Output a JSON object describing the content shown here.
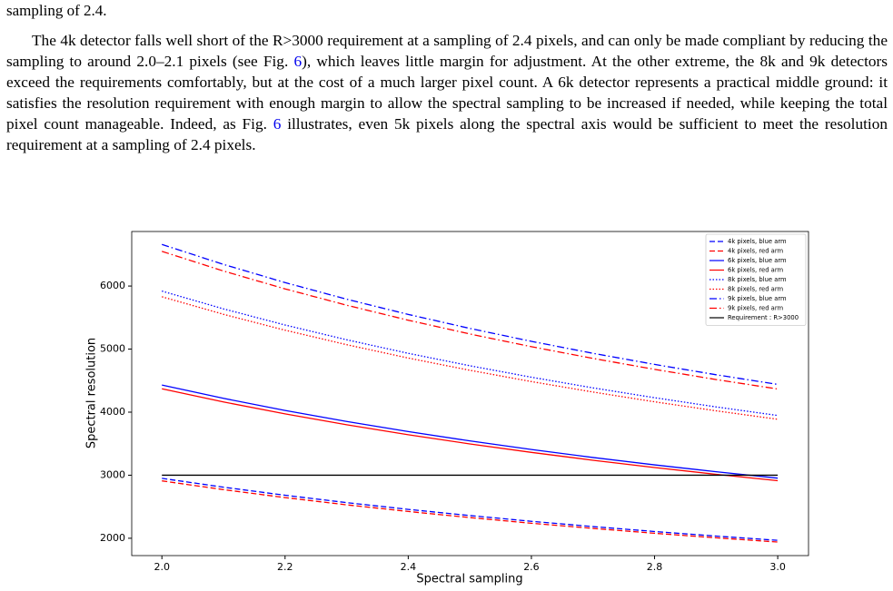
{
  "document": {
    "top_line": "sampling of 2.4.",
    "paragraph": [
      "The 4k detector falls well short of the R>3000 requirement at a sampling of 2.4 pixels, and can only be made compliant by reducing the sampling to around 2.0–2.1 pixels (see Fig. ",
      "6",
      "), which leaves little margin for adjustment. At the other extreme, the 8k and 9k detectors exceed the requirements comfortably, but at the cost of a much larger pixel count. A 6k detector represents a practical middle ground: it satisfies the resolution requirement with enough margin to allow the spectral sampling to be increased if needed, while keeping the total pixel count manageable. Indeed, as Fig. ",
      "6",
      " illustrates, even 5k pixels along the spectral axis would be sufficient to meet the resolution requirement at a sampling of 2.4 pixels."
    ]
  },
  "chart_data": {
    "type": "line",
    "x_label": "Spectral sampling",
    "y_label": "Spectral resolution",
    "x": [
      2.0,
      2.1,
      2.2,
      2.3,
      2.4,
      2.5,
      2.6,
      2.7,
      2.8,
      2.9,
      3.0
    ],
    "xlim": [
      1.951,
      3.05
    ],
    "ylim": [
      1725,
      6865
    ],
    "xticks": [
      {
        "value": 2,
        "label": "2.0"
      },
      2.2,
      2.4,
      2.6,
      2.8,
      {
        "value": 3,
        "label": "3.0"
      }
    ],
    "yticks": [
      2000,
      3000,
      4000,
      5000,
      6000
    ],
    "grid": false,
    "legend": "upper right",
    "series": [
      {
        "name": "4k pixels, blue arm",
        "color": "#0000ff",
        "linestyle": "dashed",
        "values": [
          2950,
          2810,
          2682,
          2565,
          2458,
          2360,
          2269,
          2185,
          2107,
          2034,
          1967
        ]
      },
      {
        "name": "4k pixels, red arm",
        "color": "#ff0000",
        "linestyle": "dashed",
        "values": [
          2910,
          2771,
          2645,
          2530,
          2425,
          2328,
          2238,
          2156,
          2079,
          2007,
          1940
        ]
      },
      {
        "name": "6k pixels, blue arm",
        "color": "#0000ff",
        "linestyle": "solid",
        "values": [
          4430,
          4219,
          4027,
          3852,
          3692,
          3544,
          3408,
          3281,
          3164,
          3055,
          2953
        ]
      },
      {
        "name": "6k pixels, red arm",
        "color": "#ff0000",
        "linestyle": "solid",
        "values": [
          4370,
          4162,
          3973,
          3800,
          3642,
          3496,
          3362,
          3237,
          3121,
          3014,
          2913
        ]
      },
      {
        "name": "8k pixels, blue arm",
        "color": "#0000ff",
        "linestyle": "dotted",
        "values": [
          5920,
          5638,
          5382,
          5148,
          4933,
          4736,
          4554,
          4385,
          4229,
          4083,
          3947
        ]
      },
      {
        "name": "8k pixels, red arm",
        "color": "#ff0000",
        "linestyle": "dotted",
        "values": [
          5830,
          5552,
          5300,
          5070,
          4858,
          4664,
          4485,
          4319,
          4164,
          4021,
          3887
        ]
      },
      {
        "name": "9k pixels, blue arm",
        "color": "#0000ff",
        "linestyle": "dashdot",
        "values": [
          6660,
          6343,
          6055,
          5791,
          5550,
          5328,
          5123,
          4933,
          4757,
          4593,
          4440
        ]
      },
      {
        "name": "9k pixels, red arm",
        "color": "#ff0000",
        "linestyle": "dashdot",
        "values": [
          6550,
          6238,
          5955,
          5696,
          5458,
          5240,
          5038,
          4852,
          4679,
          4517,
          4367
        ]
      },
      {
        "name": "Requirement : R>3000",
        "color": "#000000",
        "linestyle": "solid",
        "values": [
          3000,
          3000,
          3000,
          3000,
          3000,
          3000,
          3000,
          3000,
          3000,
          3000,
          3000
        ]
      }
    ]
  }
}
